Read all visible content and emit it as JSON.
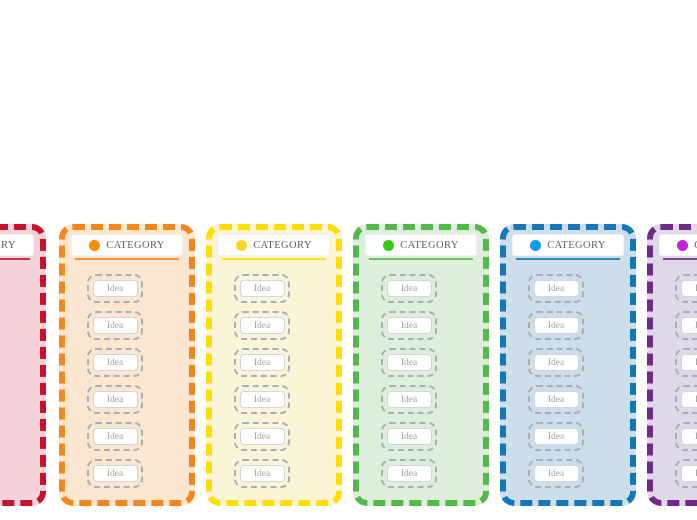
{
  "canvas": {
    "background_color": "#ffffff"
  },
  "board": {
    "idea_card_border_color": "#a9afb9",
    "idea_text_color": "#9ba1a8",
    "header_text_color": "#5f5f5f",
    "columns": [
      {
        "name": "red",
        "header_label": "CATEGORY",
        "border_color": "#c5122f",
        "background_color": "#f4d2da",
        "dot_color": "#c5122f",
        "ideas": []
      },
      {
        "name": "orange",
        "header_label": "CATEGORY",
        "border_color": "#f5861b",
        "background_color": "#fbe7cf",
        "dot_color": "#ff8a00",
        "ideas": [
          "Idea",
          "Idea",
          "Idea",
          "Idea",
          "Idea",
          "Idea"
        ]
      },
      {
        "name": "yellow",
        "header_label": "CATEGORY",
        "border_color": "#ffde00",
        "background_color": "#f9f5d6",
        "dot_color": "#ffd427",
        "ideas": [
          "Idea",
          "Idea",
          "Idea",
          "Idea",
          "Idea",
          "Idea"
        ]
      },
      {
        "name": "green",
        "header_label": "CATEGORY",
        "border_color": "#54b84c",
        "background_color": "#ddeeda",
        "dot_color": "#35cc16",
        "ideas": [
          "Idea",
          "Idea",
          "Idea",
          "Idea",
          "Idea",
          "Idea"
        ]
      },
      {
        "name": "blue",
        "header_label": "CATEGORY",
        "border_color": "#1478b6",
        "background_color": "#cbdeea",
        "dot_color": "#0d9bea",
        "ideas": [
          "Idea",
          "Idea",
          "Idea",
          "Idea",
          "Idea",
          "Idea"
        ]
      },
      {
        "name": "purple",
        "header_label": "CATEGORY",
        "border_color": "#6e2c86",
        "background_color": "#e0d8e8",
        "dot_color": "#be23d8",
        "ideas": [
          "Idea",
          "Idea",
          "Idea",
          "Idea",
          "Idea",
          "Idea"
        ]
      }
    ]
  }
}
